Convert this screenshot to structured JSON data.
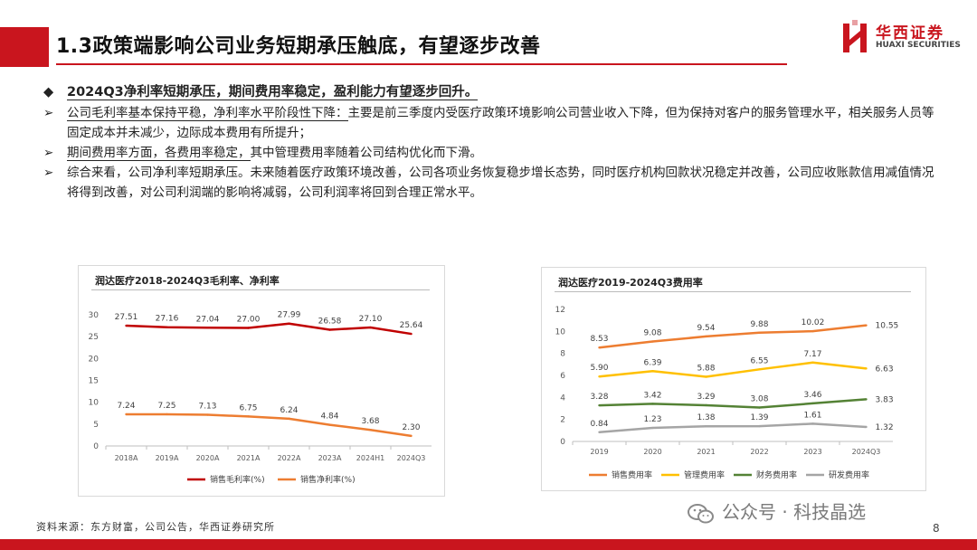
{
  "header": {
    "title": "1.3政策端影响公司业务短期承压触底，有望逐步改善",
    "logo_cn": "华西证券",
    "logo_en": "HUAXI SECURITIES",
    "brand_color": "#c9151e"
  },
  "bullets": {
    "headline_marker": "◆",
    "headline": "2024Q3净利率短期承压，期间费用率稳定，盈利能力有望逐步回升。",
    "item_marker": "➢",
    "items": [
      {
        "lead": "公司毛利率基本保持平稳，净利率水平阶段性下降：",
        "text": "主要是前三季度内受医疗政策环境影响公司营业收入下降，但为保持对客户的服务管理水平，相关服务人员等固定成本并未减少，边际成本费用有所提升；"
      },
      {
        "lead": "期间费用率方面，各费用率稳定，",
        "text": "其中管理费用率随着公司结构优化而下滑。"
      },
      {
        "lead": "",
        "text": "综合来看，公司净利率短期承压。未来随着医疗政策环境改善，公司各项业务恢复稳步增长态势，同时医疗机构回款状况稳定并改善，公司应收账款信用减值情况将得到改善，对公司利润端的影响将减弱，公司利润率将回到合理正常水平。"
      }
    ]
  },
  "chart_data": [
    {
      "type": "line",
      "title": "润达医疗2018-2024Q3毛利率、净利率",
      "categories": [
        "2018A",
        "2019A",
        "2020A",
        "2021A",
        "2022A",
        "2023A",
        "2024H1",
        "2024Q3"
      ],
      "series": [
        {
          "name": "销售毛利率(%)",
          "color": "#c00000",
          "values": [
            27.51,
            27.16,
            27.04,
            27.0,
            27.99,
            26.58,
            27.1,
            25.64
          ]
        },
        {
          "name": "销售净利率(%)",
          "color": "#ed7d31",
          "values": [
            7.24,
            7.25,
            7.13,
            6.75,
            6.24,
            4.84,
            3.68,
            2.3
          ]
        }
      ],
      "ylim": [
        0,
        30
      ],
      "yticks": [
        0,
        5,
        10,
        15,
        20,
        25,
        30
      ],
      "grid": false,
      "legend": "bottom"
    },
    {
      "type": "line",
      "title": "润达医疗2019-2024Q3费用率",
      "categories": [
        "2019",
        "2020",
        "2021",
        "2022",
        "2023",
        "2024Q3"
      ],
      "series": [
        {
          "name": "销售费用率",
          "color": "#ed7d31",
          "values": [
            8.53,
            9.08,
            9.54,
            9.88,
            10.02,
            10.55
          ]
        },
        {
          "name": "管理费用率",
          "color": "#ffc000",
          "values": [
            5.9,
            6.39,
            5.88,
            6.55,
            7.17,
            6.63
          ]
        },
        {
          "name": "财务费用率",
          "color": "#548235",
          "values": [
            3.28,
            3.42,
            3.29,
            3.08,
            3.46,
            3.83
          ]
        },
        {
          "name": "研发费用率",
          "color": "#a5a5a5",
          "values": [
            0.84,
            1.23,
            1.38,
            1.39,
            1.61,
            1.32
          ]
        }
      ],
      "ylim": [
        0,
        12
      ],
      "yticks": [
        0,
        2,
        4,
        6,
        8,
        10,
        12
      ],
      "grid": false,
      "legend": "bottom"
    }
  ],
  "footer": {
    "source": "资料来源：东方财富，公司公告，华西证券研究所",
    "page_number": "8",
    "watermark": "公众号 · 科技晶选"
  }
}
